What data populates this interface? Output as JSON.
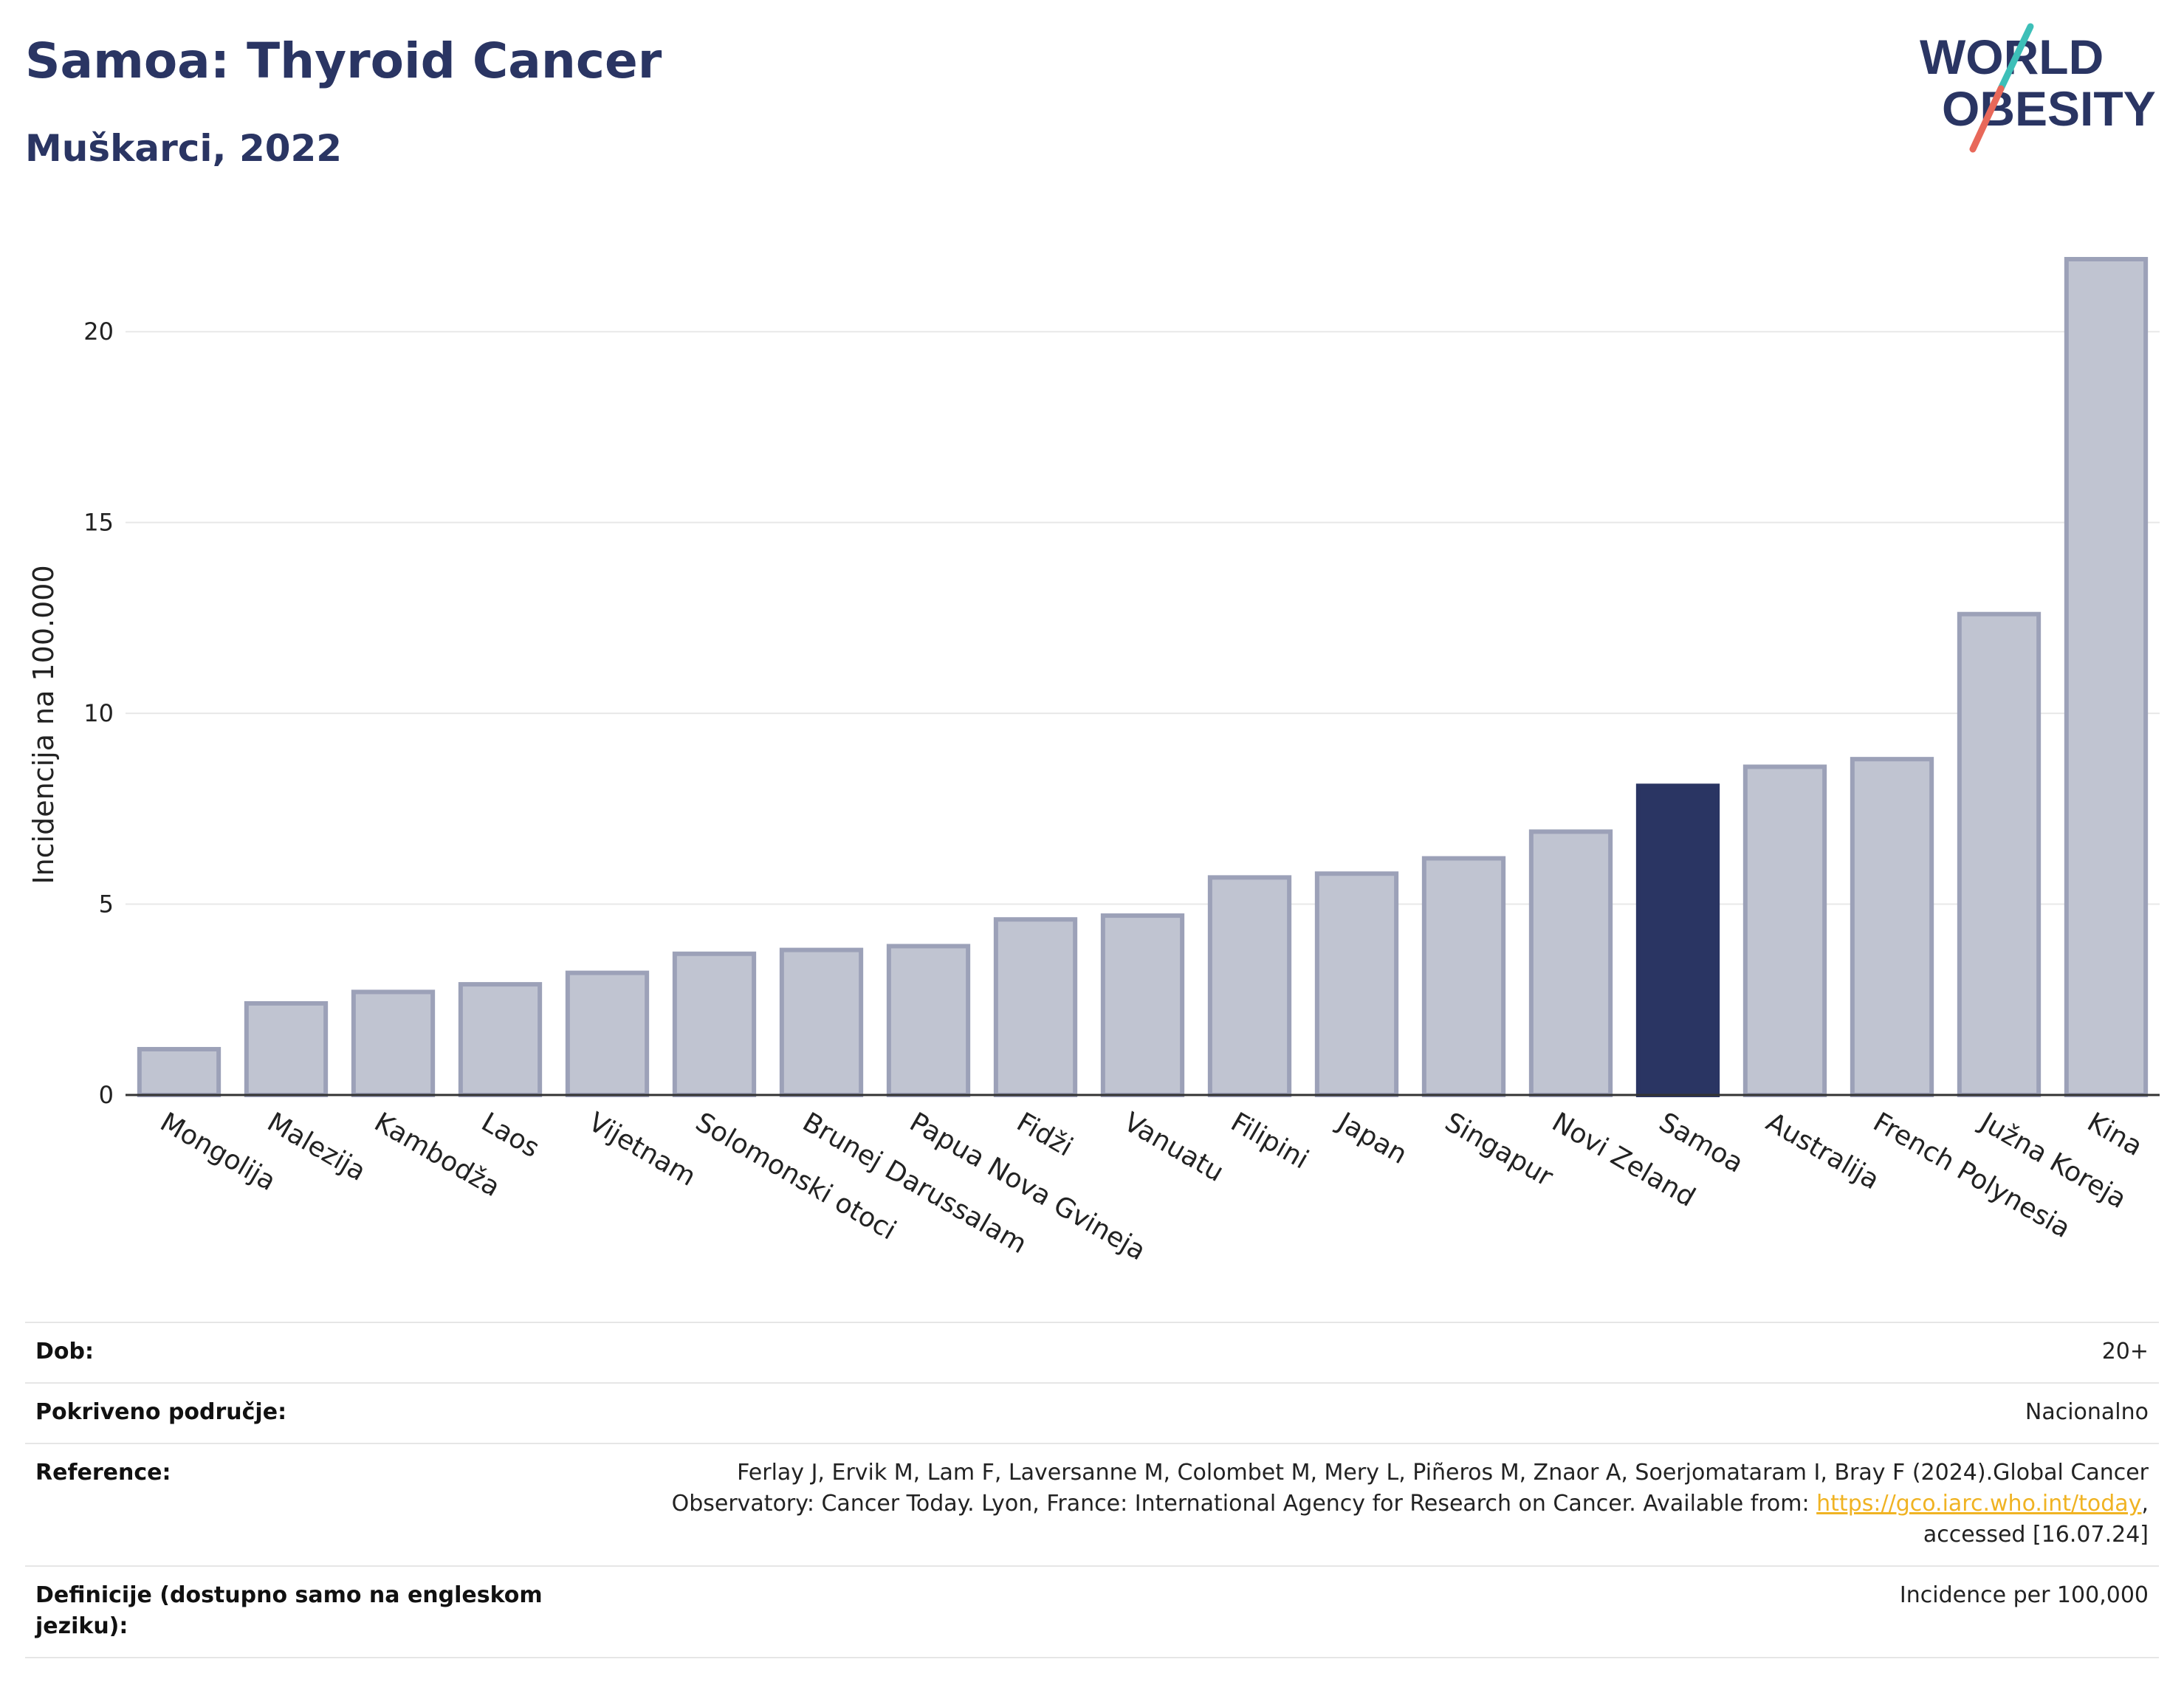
{
  "header": {
    "title": "Samoa: Thyroid Cancer",
    "subtitle": "Muškarci, 2022"
  },
  "logo": {
    "line1": "WORLD",
    "line2": "OBESITY",
    "slash_colors": [
      "#3dbfb8",
      "#e8685a"
    ],
    "text_color": "#2a3563"
  },
  "chart_data": {
    "type": "bar",
    "ylabel": "Incidencija na 100.000",
    "xlabel": "",
    "ylim": [
      0,
      22.5
    ],
    "yticks": [
      0,
      5,
      10,
      15,
      20
    ],
    "grid": true,
    "categories": [
      "Mongolija",
      "Malezija",
      "Kambodža",
      "Laos",
      "Vijetnam",
      "Solomonski otoci",
      "Brunej Darussalam",
      "Papua Nova Gvineja",
      "Fidži",
      "Vanuatu",
      "Filipini",
      "Japan",
      "Singapur",
      "Novi Zeland",
      "Samoa",
      "Australija",
      "French Polynesia",
      "Južna Koreja",
      "Kina"
    ],
    "values": [
      1.2,
      2.4,
      2.7,
      2.9,
      3.2,
      3.7,
      3.8,
      3.9,
      4.6,
      4.7,
      5.7,
      5.8,
      6.2,
      6.9,
      8.1,
      8.6,
      8.8,
      12.6,
      21.9
    ],
    "highlight": "Samoa",
    "colors": {
      "bar": "#c0c4d1",
      "bar_edge": "#9ca1b8",
      "highlight": "#2a3563",
      "grid": "#e8e8e8",
      "axis": "#333333"
    }
  },
  "info": {
    "dob_label": "Dob:",
    "dob_value": "20+",
    "area_label": "Pokriveno područje:",
    "area_value": "Nacionalno",
    "ref_label": "Reference:",
    "ref_text_1": "Ferlay J, Ervik M, Lam F, Laversanne M, Colombet M, Mery L, Piñeros M, Znaor A, Soerjomataram I, Bray F (2024).Global Cancer Observatory: Cancer Today. Lyon, France: International Agency for Research on Cancer. Available from: ",
    "ref_link": "https://gco.iarc.who.int/today",
    "ref_text_2": ", accessed [16.07.24]",
    "def_label": "Definicije (dostupno samo na engleskom jeziku):",
    "def_value": "Incidence per 100,000"
  }
}
